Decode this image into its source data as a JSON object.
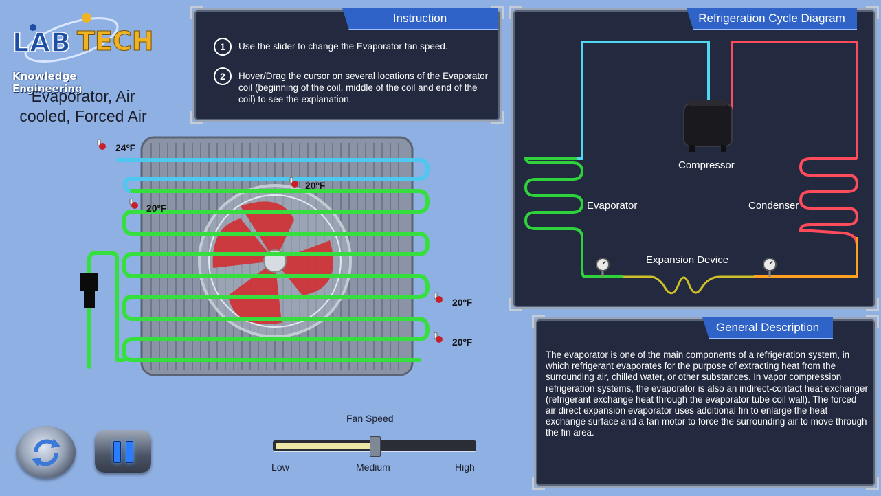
{
  "branding": {
    "logo_main": "LAB",
    "logo_accent": "TECH",
    "tagline": "Knowledge Engineering"
  },
  "page_title": "Evaporator, Air cooled, Forced Air",
  "instruction_panel": {
    "tab_title": "Instruction",
    "items": [
      {
        "number": "1",
        "text": "Use the slider to change the Evaporator fan speed."
      },
      {
        "number": "2",
        "text": "Hover/Drag the cursor on several locations of the Evaporator coil (beginning of the coil, middle of the coil and end of the coil) to see the explanation."
      }
    ]
  },
  "cycle_panel": {
    "tab_title": "Refrigeration Cycle Diagram",
    "labels": {
      "compressor": "Compressor",
      "evaporator": "Evaporator",
      "condenser": "Condenser",
      "expansion": "Expansion Device"
    },
    "colors": {
      "suction": "#4fd8f0",
      "discharge": "#ff4b5c",
      "evap": "#2fd23a",
      "liquid": "#ffa020",
      "mixed": "#cfc02a"
    }
  },
  "description_panel": {
    "tab_title": "General Description",
    "text": "The evaporator is one of the main components of a refrigeration system, in which refrigerant evaporates for the purpose of extracting heat from the surrounding air, chilled water, or other substances. In vapor compression refrigeration systems, the evaporator is also an indirect-contact heat exchanger (refrigerant exchange heat through the evaporator tube coil wall). The forced air direct expansion evaporator uses additional fin to enlarge the heat exchange surface and a fan motor to force the surrounding air to move through the fin area."
  },
  "evaporator_readings": {
    "inlet": "24ºF",
    "coil_top": "20ºF",
    "coil_left": "20ºF",
    "coil_right_mid": "20ºF",
    "coil_right_low": "20ºF"
  },
  "fan_speed": {
    "label": "Fan Speed",
    "low": "Low",
    "medium": "Medium",
    "high": "High",
    "value": 0.5
  },
  "controls": {
    "reset_icon": "reset-icon",
    "pause_icon": "pause-icon"
  }
}
